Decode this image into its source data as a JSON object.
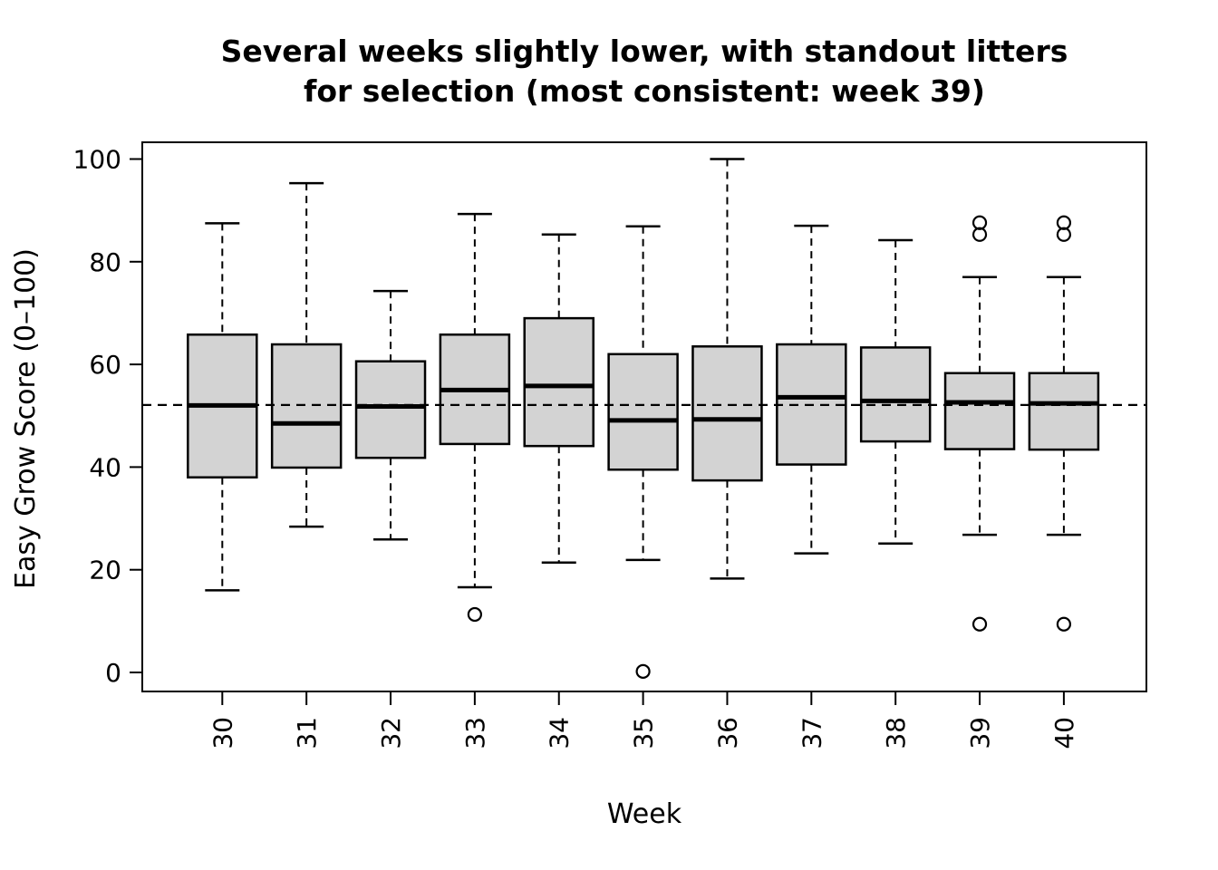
{
  "chart_data": {
    "type": "boxplot",
    "title_lines": [
      "Several weeks slightly lower, with standout litters",
      "for selection (most consistent: week 39)"
    ],
    "xlabel": "Week",
    "ylabel": "Easy Grow Score (0–100)",
    "y_ticks": [
      0,
      20,
      40,
      60,
      80,
      100
    ],
    "ylim": [
      -4,
      104
    ],
    "grid": "off",
    "legend": "none",
    "categories": [
      "30",
      "31",
      "32",
      "33",
      "34",
      "35",
      "36",
      "37",
      "38",
      "39",
      "40"
    ],
    "reference_line": {
      "value": 52.1,
      "style": "dashed",
      "color": "#000000"
    },
    "boxes": [
      {
        "week": "30",
        "whisker_low": 16.0,
        "q1": 38.0,
        "median": 52.0,
        "q3": 65.8,
        "whisker_high": 87.5,
        "outliers": []
      },
      {
        "week": "31",
        "whisker_low": 28.4,
        "q1": 39.9,
        "median": 48.5,
        "q3": 63.9,
        "whisker_high": 95.3,
        "outliers": []
      },
      {
        "week": "32",
        "whisker_low": 25.9,
        "q1": 41.8,
        "median": 51.8,
        "q3": 60.6,
        "whisker_high": 74.3,
        "outliers": []
      },
      {
        "week": "33",
        "whisker_low": 16.6,
        "q1": 44.5,
        "median": 55.0,
        "q3": 65.8,
        "whisker_high": 89.3,
        "outliers": [
          11.3
        ]
      },
      {
        "week": "34",
        "whisker_low": 21.4,
        "q1": 44.1,
        "median": 55.8,
        "q3": 69.0,
        "whisker_high": 85.3,
        "outliers": []
      },
      {
        "week": "35",
        "whisker_low": 21.9,
        "q1": 39.5,
        "median": 49.1,
        "q3": 62.0,
        "whisker_high": 86.9,
        "outliers": [
          0.2
        ]
      },
      {
        "week": "36",
        "whisker_low": 18.3,
        "q1": 37.4,
        "median": 49.3,
        "q3": 63.5,
        "whisker_high": 100.0,
        "outliers": []
      },
      {
        "week": "37",
        "whisker_low": 23.2,
        "q1": 40.5,
        "median": 53.6,
        "q3": 63.9,
        "whisker_high": 87.0,
        "outliers": []
      },
      {
        "week": "38",
        "whisker_low": 25.1,
        "q1": 45.0,
        "median": 52.9,
        "q3": 63.3,
        "whisker_high": 84.2,
        "outliers": []
      },
      {
        "week": "39",
        "whisker_low": 26.8,
        "q1": 43.5,
        "median": 52.6,
        "q3": 58.3,
        "whisker_high": 77.0,
        "outliers": [
          87.6,
          85.3,
          9.4
        ]
      },
      {
        "week": "40",
        "whisker_low": 26.8,
        "q1": 43.4,
        "median": 52.4,
        "q3": 58.3,
        "whisker_high": 77.0,
        "outliers": [
          87.6,
          85.3,
          9.4
        ]
      }
    ],
    "colors": {
      "box_fill": "#d3d3d3",
      "stroke": "#000000",
      "background": "#ffffff"
    }
  }
}
